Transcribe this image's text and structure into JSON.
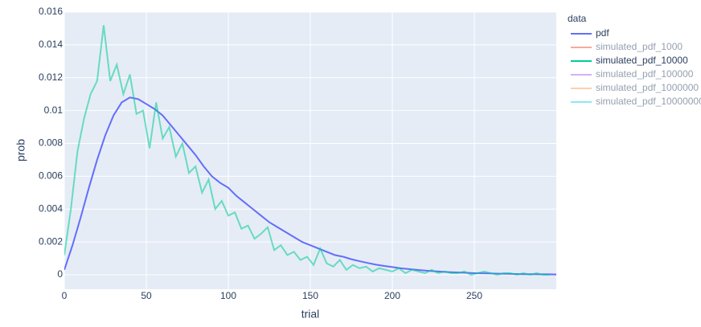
{
  "chart_data": {
    "type": "line",
    "xlabel": "trial",
    "ylabel": "prob",
    "legend_title": "data",
    "xlim": [
      0,
      300
    ],
    "xticks": [
      0,
      50,
      100,
      150,
      200,
      250
    ],
    "ylim": [
      -0.00088,
      0.016
    ],
    "yticks": [
      0,
      0.002,
      0.004,
      0.006,
      0.008,
      0.01,
      0.012,
      0.014,
      0.016
    ],
    "grid": true,
    "legend": "right",
    "series": [
      {
        "name": "pdf",
        "color": "#636efa",
        "x": [
          0,
          5,
          10,
          15,
          20,
          25,
          30,
          35,
          40,
          45,
          50,
          55,
          60,
          65,
          70,
          75,
          80,
          85,
          90,
          95,
          100,
          105,
          110,
          115,
          120,
          125,
          130,
          135,
          140,
          145,
          150,
          155,
          160,
          165,
          170,
          175,
          180,
          185,
          190,
          195,
          200,
          205,
          210,
          215,
          220,
          225,
          230,
          235,
          240,
          245,
          250,
          255,
          260,
          265,
          270,
          275,
          280,
          285,
          290,
          295,
          300
        ],
        "values": [
          0.0003,
          0.0018,
          0.0035,
          0.0053,
          0.007,
          0.0085,
          0.0097,
          0.0105,
          0.0108,
          0.0107,
          0.0104,
          0.0101,
          0.0097,
          0.0091,
          0.0085,
          0.0079,
          0.0073,
          0.0066,
          0.006,
          0.0056,
          0.0053,
          0.0048,
          0.0044,
          0.004,
          0.0036,
          0.0032,
          0.0029,
          0.0026,
          0.0023,
          0.002,
          0.0018,
          0.0016,
          0.0014,
          0.0012,
          0.0011,
          0.00095,
          0.00083,
          0.00072,
          0.00062,
          0.00054,
          0.00047,
          0.0004,
          0.00035,
          0.0003,
          0.00026,
          0.00022,
          0.00019,
          0.00016,
          0.00014,
          0.00012,
          0.0001,
          9e-05,
          8e-05,
          7e-05,
          6e-05,
          5e-05,
          4e-05,
          4e-05,
          3e-05,
          3e-05,
          2e-05
        ]
      },
      {
        "name": "simulated_pdf_1000",
        "color": "#EF553B",
        "visible": "legendonly"
      },
      {
        "name": "simulated_pdf_10000",
        "color": "#00cc96",
        "x": [
          0,
          4,
          8,
          12,
          16,
          20,
          24,
          28,
          32,
          36,
          40,
          44,
          48,
          52,
          56,
          60,
          64,
          68,
          72,
          76,
          80,
          84,
          88,
          92,
          96,
          100,
          104,
          108,
          112,
          116,
          120,
          124,
          128,
          132,
          136,
          140,
          144,
          148,
          152,
          156,
          160,
          164,
          168,
          172,
          176,
          180,
          184,
          188,
          192,
          196,
          200,
          204,
          208,
          212,
          216,
          220,
          224,
          228,
          232,
          236,
          240,
          244,
          248,
          252,
          256,
          260,
          264,
          268,
          272,
          276,
          280,
          284,
          288,
          292,
          296
        ],
        "values": [
          0.0012,
          0.004,
          0.0075,
          0.0095,
          0.011,
          0.0118,
          0.0152,
          0.0118,
          0.0128,
          0.011,
          0.0122,
          0.0098,
          0.01,
          0.0077,
          0.0105,
          0.0083,
          0.009,
          0.0072,
          0.008,
          0.0062,
          0.0066,
          0.005,
          0.0058,
          0.004,
          0.0045,
          0.0036,
          0.0038,
          0.0028,
          0.003,
          0.0022,
          0.0025,
          0.0029,
          0.0015,
          0.0018,
          0.0012,
          0.0014,
          0.0009,
          0.0011,
          0.0006,
          0.0016,
          0.0007,
          0.0005,
          0.0009,
          0.0003,
          0.0006,
          0.0004,
          0.0005,
          0.0002,
          0.0004,
          0.0003,
          0.0002,
          0.0004,
          0.0001,
          0.0003,
          0.0002,
          0.0001,
          0.0003,
          0.0001,
          0.0002,
          0.0001,
          0.0001,
          0.0002,
          0,
          0.0001,
          0.0002,
          0.0001,
          0,
          0.0001,
          0.0001,
          0,
          0.0001,
          0,
          0.0001,
          0,
          0
        ]
      },
      {
        "name": "simulated_pdf_100000",
        "color": "#ab63fa",
        "visible": "legendonly"
      },
      {
        "name": "simulated_pdf_1000000",
        "color": "#FFA15A",
        "visible": "legendonly"
      },
      {
        "name": "simulated_pdf_10000000",
        "color": "#19d3f3",
        "visible": "legendonly"
      }
    ]
  }
}
